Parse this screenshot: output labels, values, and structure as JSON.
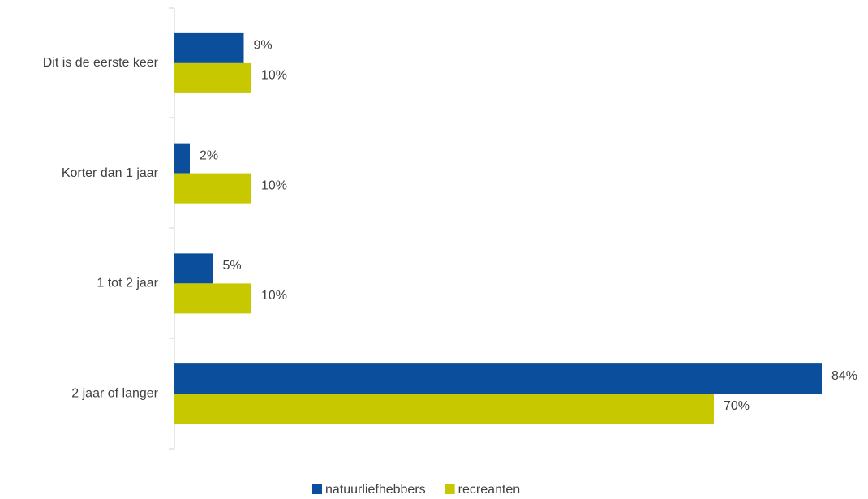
{
  "chart_data": {
    "type": "hbar",
    "categories": [
      "Dit is de eerste keer",
      "Korter dan 1 jaar",
      "1 tot 2 jaar",
      "2 jaar of langer"
    ],
    "series": [
      {
        "name": "natuurliefhebbers",
        "color": "#0b4f9c",
        "values": [
          9,
          2,
          5,
          84
        ],
        "value_labels": [
          "9%",
          "2%",
          "5%",
          "84%"
        ]
      },
      {
        "name": "recreanten",
        "color": "#c8c800",
        "values": [
          10,
          10,
          10,
          70
        ],
        "value_labels": [
          "10%",
          "10%",
          "10%",
          "70%"
        ]
      }
    ],
    "xlim": [
      0,
      90
    ],
    "legend": "bottom"
  }
}
